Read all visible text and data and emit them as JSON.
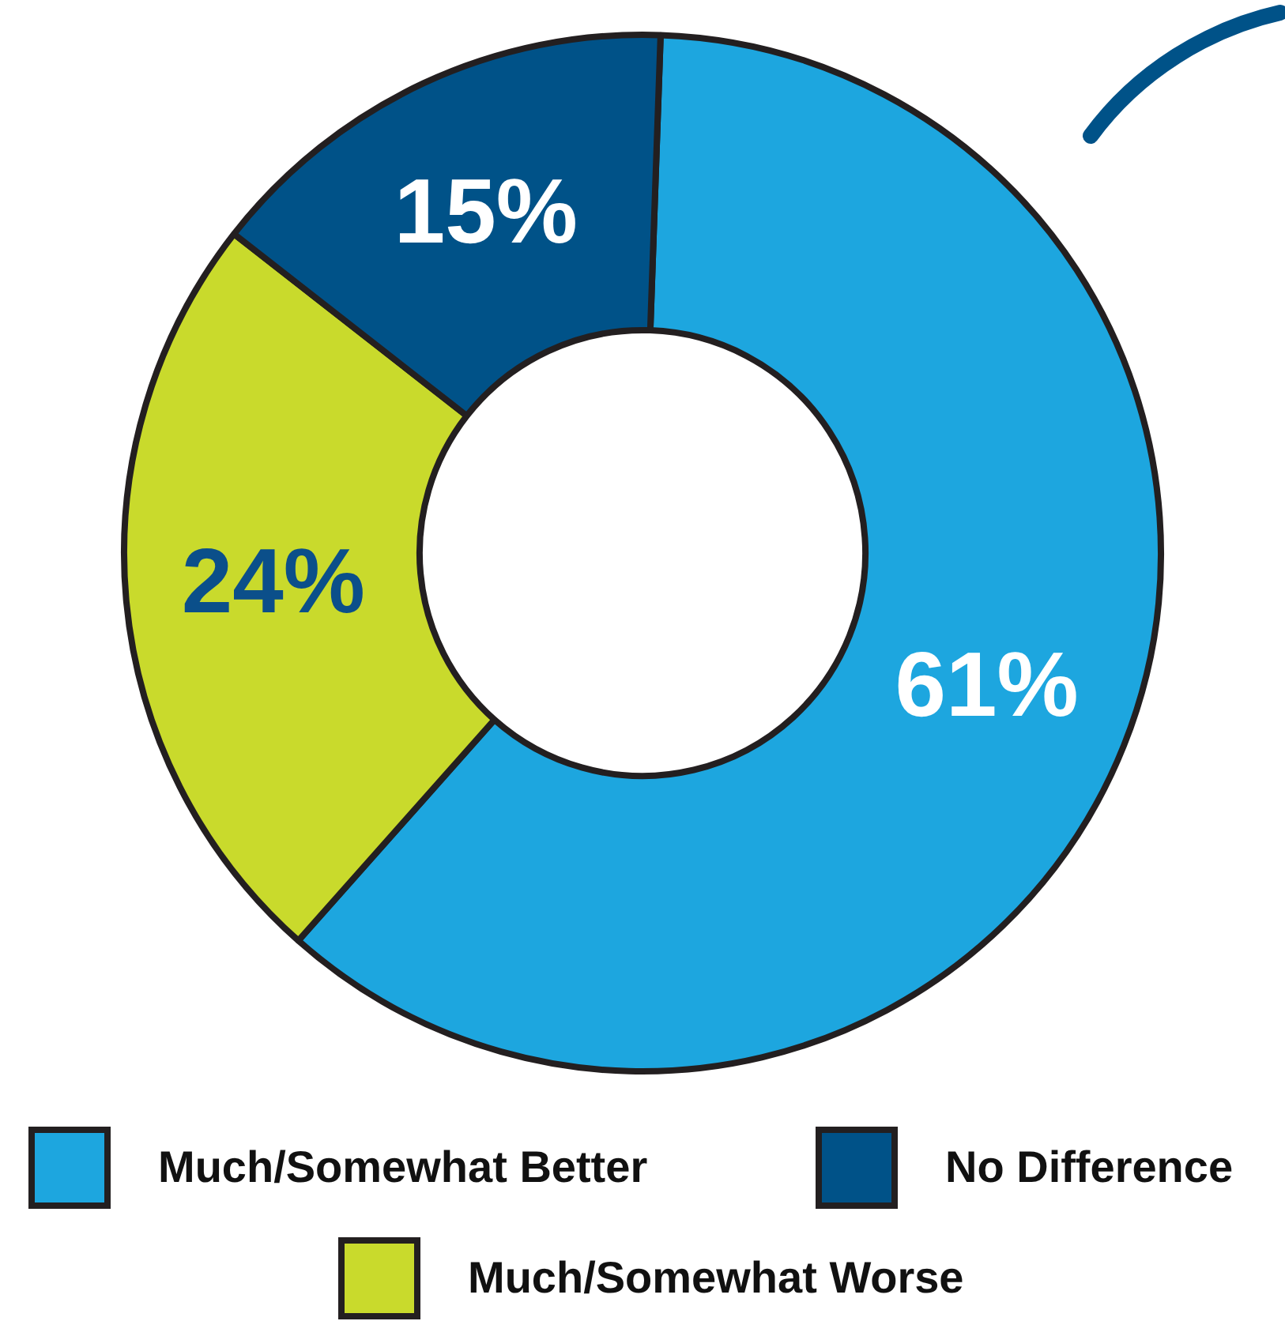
{
  "chart_data": {
    "type": "donut",
    "categories": [
      "Much/Somewhat Better",
      "Much/Somewhat Worse",
      "No Difference"
    ],
    "values": [
      61,
      24,
      15
    ],
    "colors": [
      "#1da6df",
      "#c9da2c",
      "#005288"
    ],
    "value_labels": [
      "61%",
      "24%",
      "15%"
    ],
    "legend": "bottom"
  }
}
